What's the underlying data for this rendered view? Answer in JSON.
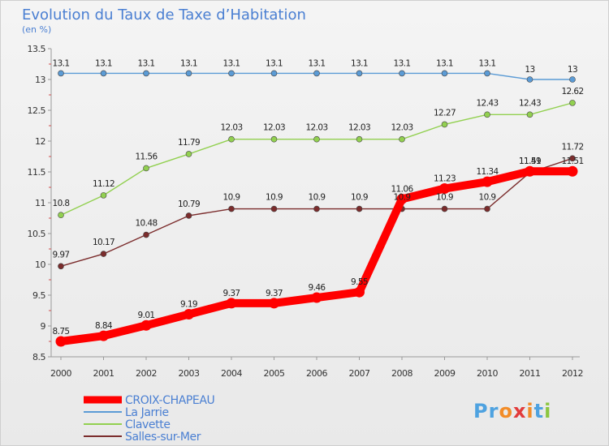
{
  "chart_data": {
    "type": "line",
    "title": "Evolution du Taux de Taxe d’Habitation",
    "subtitle": "(en %)",
    "xlabel": "",
    "ylabel": "",
    "categories": [
      "2000",
      "2001",
      "2002",
      "2003",
      "2004",
      "2005",
      "2006",
      "2007",
      "2008",
      "2009",
      "2010",
      "2011",
      "2012"
    ],
    "ylim": [
      8.5,
      13.5
    ],
    "yticks": [
      "8.5",
      "9",
      "9.5",
      "10",
      "10.5",
      "11",
      "11.5",
      "12",
      "12.5",
      "13",
      "13.5"
    ],
    "grid": false,
    "legend_position": "bottom-left",
    "series": [
      {
        "name": "CROIX-CHAPEAU",
        "color": "#ff0000",
        "values": [
          8.75,
          8.84,
          9.01,
          9.19,
          9.37,
          9.37,
          9.46,
          9.55,
          11.06,
          11.23,
          11.34,
          11.51,
          11.51
        ],
        "labels": [
          "8.75",
          "8.84",
          "9.01",
          "9.19",
          "9.37",
          "9.37",
          "9.46",
          "9.55",
          "11.06",
          "11.23",
          "11.34",
          "11.51",
          "11.51"
        ]
      },
      {
        "name": "La Jarrie",
        "color": "#5b9bd5",
        "values": [
          13.1,
          13.1,
          13.1,
          13.1,
          13.1,
          13.1,
          13.1,
          13.1,
          13.1,
          13.1,
          13.1,
          13,
          13
        ],
        "labels": [
          "13.1",
          "13.1",
          "13.1",
          "13.1",
          "13.1",
          "13.1",
          "13.1",
          "13.1",
          "13.1",
          "13.1",
          "13.1",
          "13",
          "13"
        ]
      },
      {
        "name": "Clavette",
        "color": "#92d050",
        "values": [
          10.8,
          11.12,
          11.56,
          11.79,
          12.03,
          12.03,
          12.03,
          12.03,
          12.03,
          12.27,
          12.43,
          12.43,
          12.62
        ],
        "labels": [
          "10.8",
          "11.12",
          "11.56",
          "11.79",
          "12.03",
          "12.03",
          "12.03",
          "12.03",
          "12.03",
          "12.27",
          "12.43",
          "12.43",
          "12.62"
        ]
      },
      {
        "name": "Salles-sur-Mer",
        "color": "#7b2c2c",
        "values": [
          9.97,
          10.17,
          10.48,
          10.79,
          10.9,
          10.9,
          10.9,
          10.9,
          10.9,
          10.9,
          10.9,
          11.49,
          11.72
        ],
        "labels": [
          "9.97",
          "10.17",
          "10.48",
          "10.79",
          "10.9",
          "10.9",
          "10.9",
          "10.9",
          "10.9",
          "10.9",
          "10.9",
          "11.49",
          "11.72"
        ]
      }
    ]
  },
  "logo": {
    "text": "Proxiti",
    "colors": [
      "#4ea2e0",
      "#f28c28",
      "#e23b3b",
      "#8cc63f"
    ]
  }
}
